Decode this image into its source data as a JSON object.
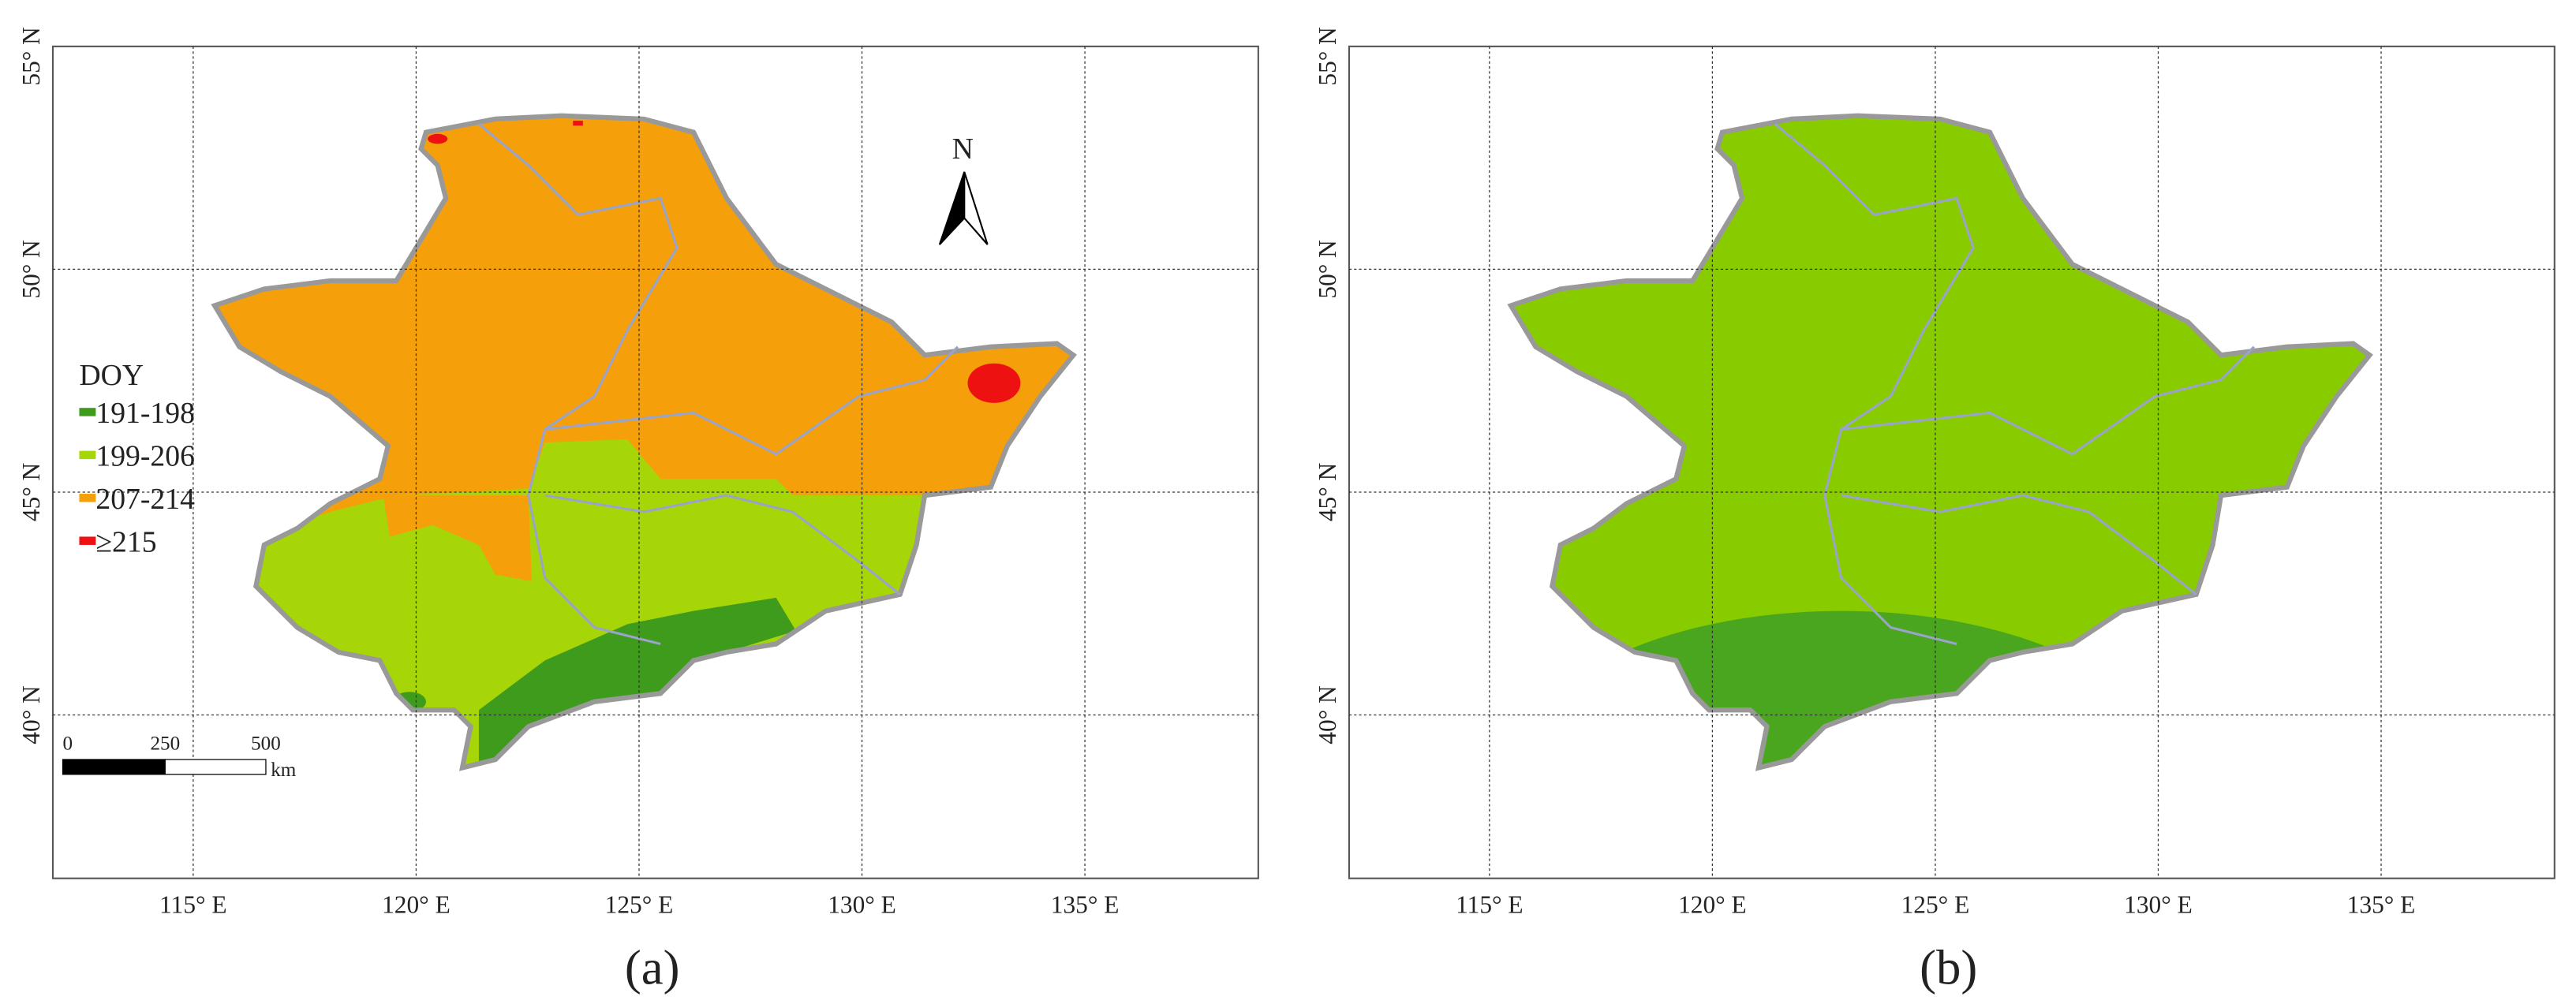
{
  "panels": [
    {
      "label": "(a)",
      "lat_labels": [
        "55° N",
        "50° N",
        "45° N",
        "40° N"
      ],
      "lon_labels": [
        "115° E",
        "120° E",
        "125° E",
        "130° E",
        "135° E"
      ],
      "legend": {
        "title": "DOY",
        "items": [
          {
            "label": "191-198",
            "color": "#3e9b1c"
          },
          {
            "label": "199-206",
            "color": "#a6d608"
          },
          {
            "label": "207-214",
            "color": "#f5a00a"
          },
          {
            "label": "≥215",
            "color": "#ee1111"
          }
        ]
      },
      "scale_bar": {
        "labels": [
          "0",
          "250",
          "500"
        ],
        "unit": "km"
      },
      "north_arrow": "N"
    },
    {
      "label": "(b)",
      "lat_labels": [
        "55° N",
        "50° N",
        "45° N",
        "40° N"
      ],
      "lon_labels": [
        "115° E",
        "120° E",
        "125° E",
        "130° E",
        "135° E"
      ]
    }
  ]
}
